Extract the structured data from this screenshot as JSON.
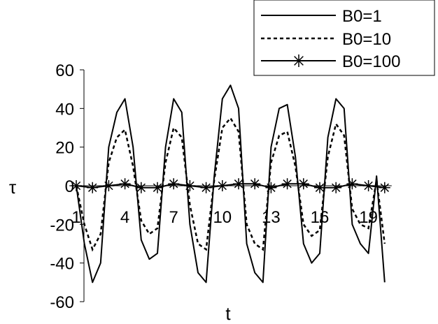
{
  "chart_data": {
    "type": "line",
    "xlabel": "t",
    "ylabel": "τ",
    "ylim": [
      -60,
      60
    ],
    "yticks": [
      60,
      40,
      20,
      0,
      -20,
      -40,
      -60
    ],
    "xlim": [
      1,
      20
    ],
    "xticks": [
      1,
      4,
      7,
      10,
      13,
      16,
      19
    ],
    "grid": false,
    "legend_position": "top-right",
    "series": [
      {
        "name": "B0=1",
        "style": "solid",
        "color": "#000000",
        "x": [
          1,
          1.5,
          2,
          2.5,
          3,
          3.5,
          4,
          4.5,
          5,
          5.5,
          6,
          6.5,
          7,
          7.5,
          8,
          8.5,
          9,
          9.5,
          10,
          10.5,
          11,
          11.5,
          12,
          12.5,
          13,
          13.5,
          14,
          14.5,
          15,
          15.5,
          16,
          16.5,
          17,
          17.5,
          18,
          18.5,
          19,
          19.5,
          20
        ],
        "values": [
          0,
          -30,
          -50,
          -40,
          20,
          38,
          45,
          20,
          -28,
          -38,
          -35,
          20,
          45,
          38,
          -20,
          -45,
          -50,
          5,
          45,
          52,
          40,
          -30,
          -45,
          -50,
          20,
          40,
          42,
          15,
          -30,
          -40,
          -35,
          25,
          45,
          40,
          -20,
          -30,
          -35,
          5,
          -50
        ]
      },
      {
        "name": "B0=10",
        "style": "dashed",
        "color": "#000000",
        "x": [
          1,
          1.5,
          2,
          2.5,
          3,
          3.5,
          4,
          4.5,
          5,
          5.5,
          6,
          6.5,
          7,
          7.5,
          8,
          8.5,
          9,
          9.5,
          10,
          10.5,
          11,
          11.5,
          12,
          12.5,
          13,
          13.5,
          14,
          14.5,
          15,
          15.5,
          16,
          16.5,
          17,
          17.5,
          18,
          18.5,
          19,
          19.5,
          20
        ],
        "values": [
          0,
          -20,
          -33,
          -25,
          12,
          25,
          29,
          10,
          -18,
          -25,
          -22,
          12,
          30,
          25,
          -10,
          -30,
          -33,
          3,
          30,
          35,
          28,
          -20,
          -30,
          -33,
          12,
          26,
          28,
          10,
          -20,
          -26,
          -23,
          15,
          32,
          26,
          -12,
          -20,
          -22,
          3,
          -30
        ]
      },
      {
        "name": "B0=100",
        "style": "solid-asterisk",
        "color": "#000000",
        "x": [
          1,
          2,
          3,
          4,
          5,
          6,
          7,
          8,
          9,
          10,
          11,
          12,
          13,
          14,
          15,
          16,
          17,
          18,
          19,
          20
        ],
        "values": [
          0,
          -1,
          0,
          1,
          -1,
          -1,
          1,
          0,
          -1,
          0,
          1,
          1,
          -1,
          1,
          1,
          -1,
          -1,
          1,
          0,
          -1
        ]
      }
    ]
  }
}
